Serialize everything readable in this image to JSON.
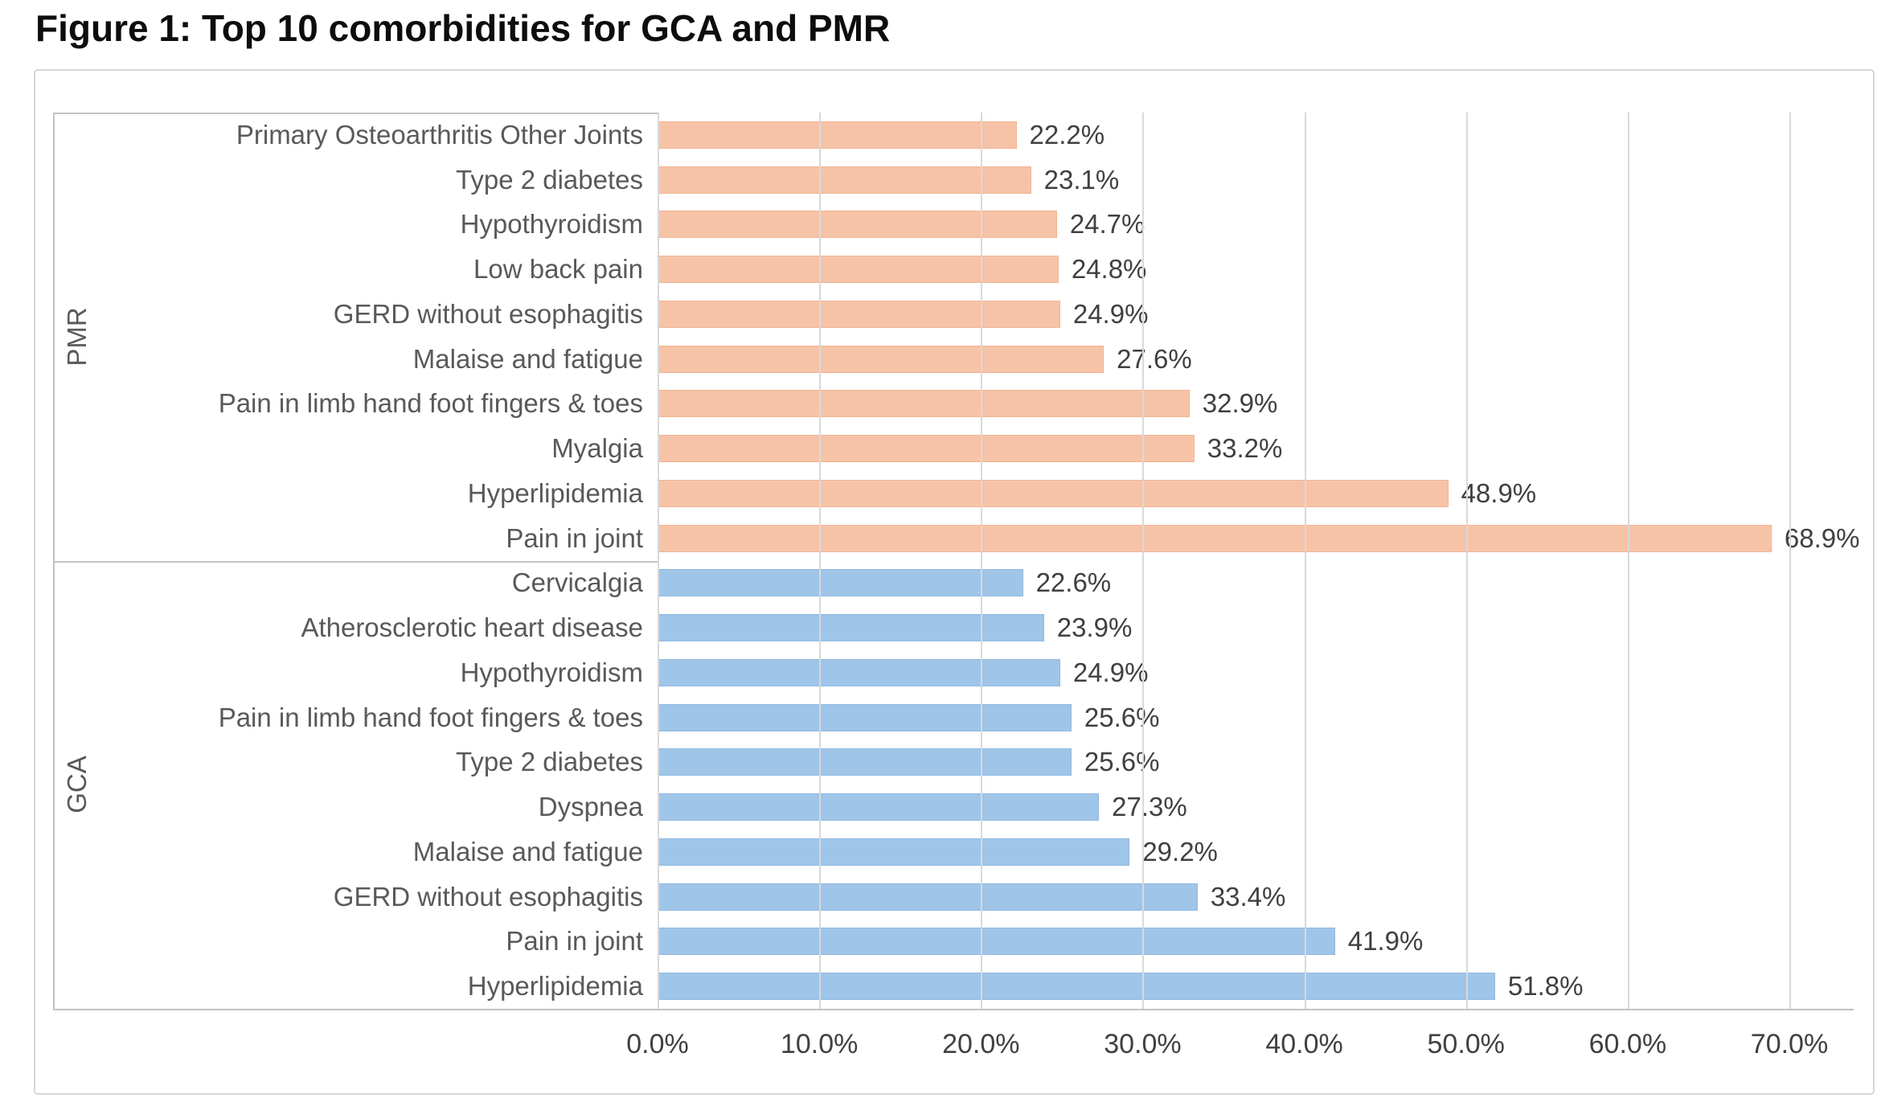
{
  "title": "Figure 1: Top 10 comorbidities for GCA and PMR",
  "colors": {
    "pmr_bar": "#f6c3a7",
    "gca_bar": "#9fc5e8",
    "gridline": "#d9d9d9",
    "axis_line": "#c3c3c3",
    "category_text": "#595959",
    "value_text": "#404040",
    "title_text": "#0d0d0d"
  },
  "chart_data": {
    "type": "bar",
    "orientation": "horizontal",
    "title": "Figure 1: Top 10 comorbidities for GCA and PMR",
    "xlabel": "",
    "ylabel": "",
    "xlim": [
      0,
      70
    ],
    "grid": true,
    "x_tick_labels": [
      "0.0%",
      "10.0%",
      "20.0%",
      "30.0%",
      "40.0%",
      "50.0%",
      "60.0%",
      "70.0%"
    ],
    "groups": [
      {
        "name": "PMR",
        "color": "#f6c3a7",
        "bars": [
          {
            "label": "Primary Osteoarthritis Other Joints",
            "value": 22.2,
            "value_label": "22.2%"
          },
          {
            "label": "Type 2 diabetes",
            "value": 23.1,
            "value_label": "23.1%"
          },
          {
            "label": "Hypothyroidism",
            "value": 24.7,
            "value_label": "24.7%"
          },
          {
            "label": "Low back pain",
            "value": 24.8,
            "value_label": "24.8%"
          },
          {
            "label": "GERD without esophagitis",
            "value": 24.9,
            "value_label": "24.9%"
          },
          {
            "label": "Malaise and fatigue",
            "value": 27.6,
            "value_label": "27.6%"
          },
          {
            "label": "Pain in limb hand foot fingers & toes",
            "value": 32.9,
            "value_label": "32.9%"
          },
          {
            "label": "Myalgia",
            "value": 33.2,
            "value_label": "33.2%"
          },
          {
            "label": "Hyperlipidemia",
            "value": 48.9,
            "value_label": "48.9%"
          },
          {
            "label": "Pain in joint",
            "value": 68.9,
            "value_label": "68.9%"
          }
        ]
      },
      {
        "name": "GCA",
        "color": "#9fc5e8",
        "bars": [
          {
            "label": "Cervicalgia",
            "value": 22.6,
            "value_label": "22.6%"
          },
          {
            "label": "Atherosclerotic heart disease",
            "value": 23.9,
            "value_label": "23.9%"
          },
          {
            "label": "Hypothyroidism",
            "value": 24.9,
            "value_label": "24.9%"
          },
          {
            "label": "Pain in limb hand foot fingers & toes",
            "value": 25.6,
            "value_label": "25.6%"
          },
          {
            "label": "Type 2 diabetes",
            "value": 25.6,
            "value_label": "25.6%"
          },
          {
            "label": "Dyspnea",
            "value": 27.3,
            "value_label": "27.3%"
          },
          {
            "label": "Malaise and fatigue",
            "value": 29.2,
            "value_label": "29.2%"
          },
          {
            "label": "GERD without esophagitis",
            "value": 33.4,
            "value_label": "33.4%"
          },
          {
            "label": "Pain in joint",
            "value": 41.9,
            "value_label": "41.9%"
          },
          {
            "label": "Hyperlipidemia",
            "value": 51.8,
            "value_label": "51.8%"
          }
        ]
      }
    ]
  }
}
